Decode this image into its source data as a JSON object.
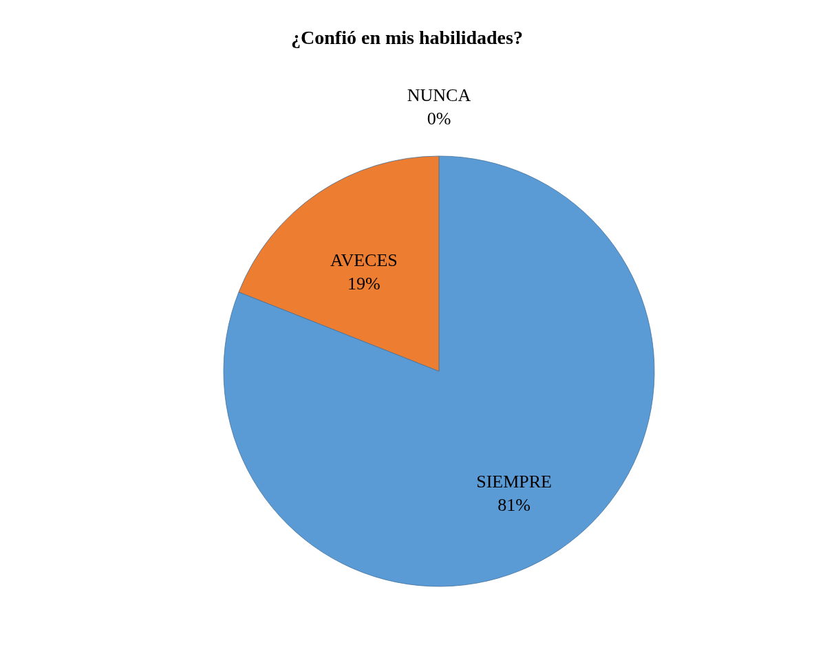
{
  "chart_data": {
    "type": "pie",
    "title": "¿Confió en mis habilidades?",
    "categories": [
      "SIEMPRE",
      "AVECES",
      "NUNCA"
    ],
    "values": [
      81,
      19,
      0
    ],
    "colors": [
      "#5b9bd5",
      "#ed7d31",
      "#a5a5a5"
    ],
    "value_labels": [
      "81%",
      "19%",
      "0%"
    ]
  }
}
